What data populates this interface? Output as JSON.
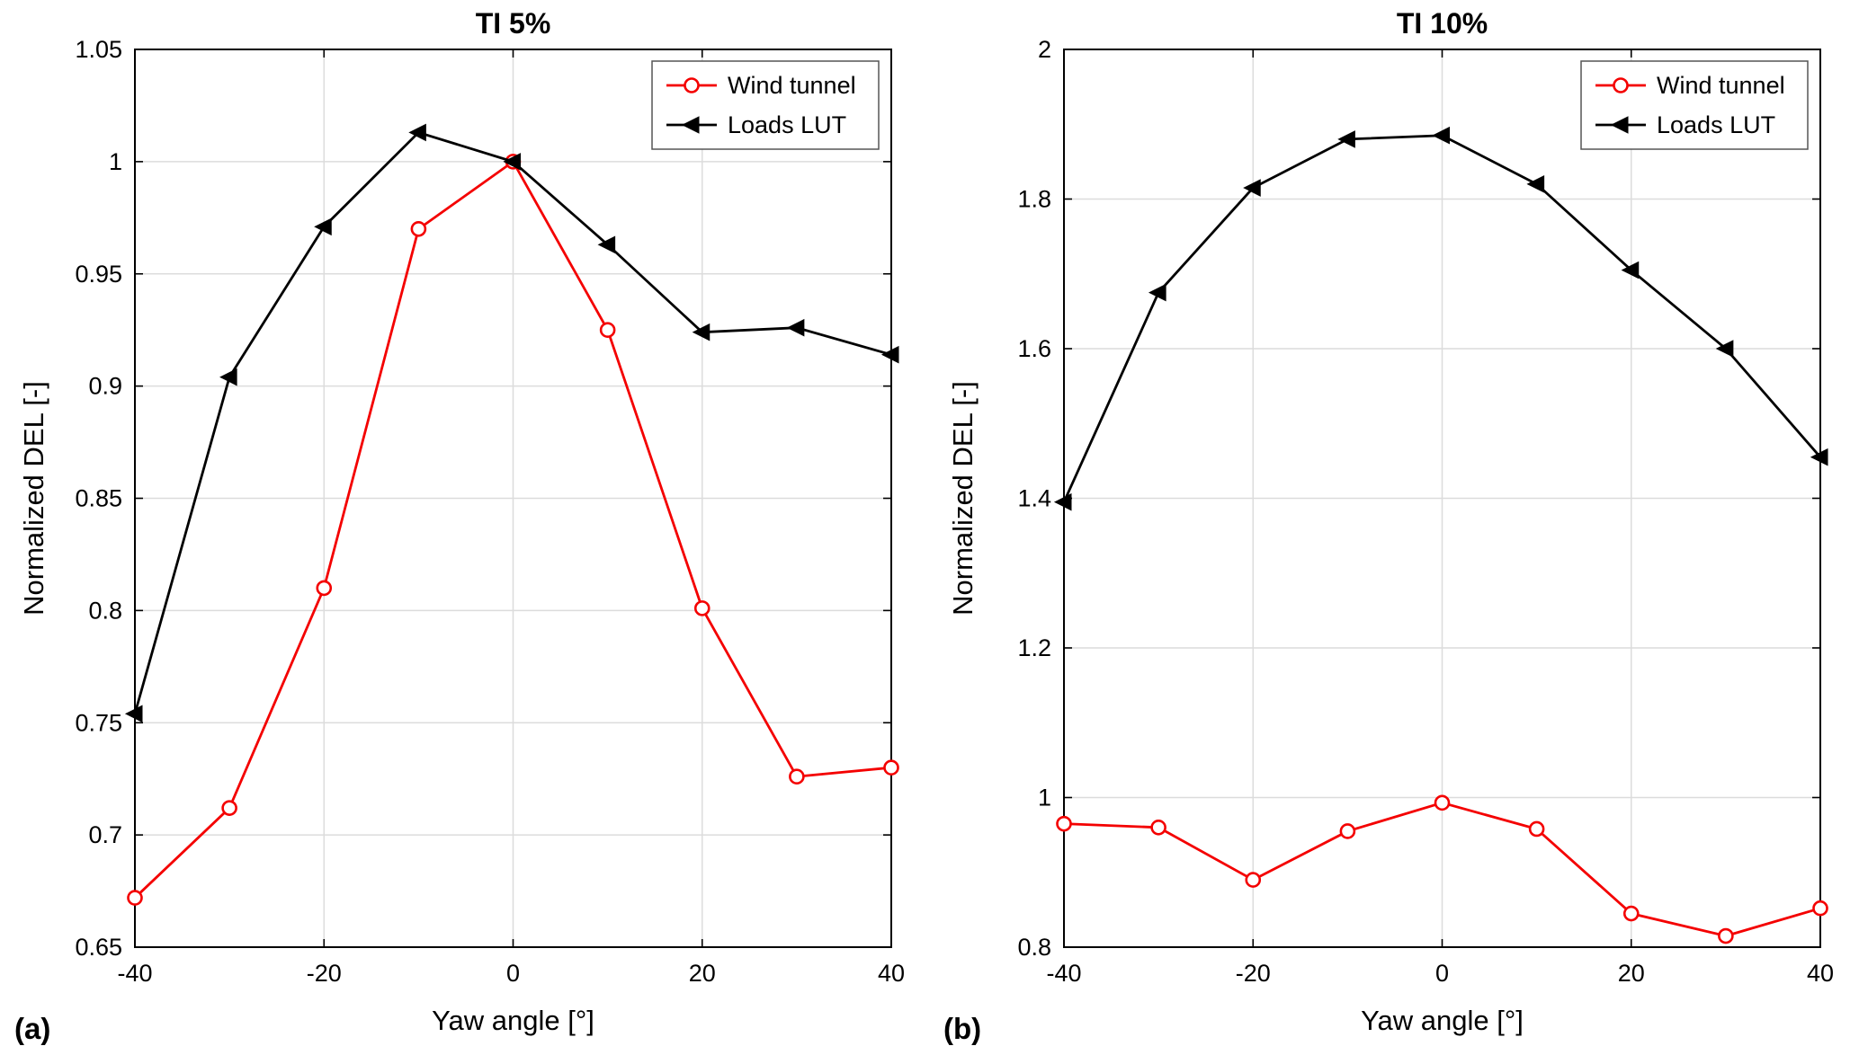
{
  "figure": {
    "panels": [
      {
        "label": "(a)"
      },
      {
        "label": "(b)"
      }
    ]
  },
  "chart_data": [
    {
      "type": "line",
      "title": "TI 5%",
      "xlabel": "Yaw angle [°]",
      "ylabel": "Normalized DEL [-]",
      "grid": true,
      "legend_position": "top-right",
      "xlim": [
        -40,
        40
      ],
      "ylim": [
        0.65,
        1.05
      ],
      "xtick_values": [
        -40,
        -20,
        0,
        20,
        40
      ],
      "xtick_labels": [
        "-40",
        "-20",
        "0",
        "20",
        "40"
      ],
      "ytick_values": [
        0.65,
        0.7,
        0.75,
        0.8,
        0.85,
        0.9,
        0.95,
        1,
        1.05
      ],
      "ytick_labels": [
        "0.65",
        "0.7",
        "0.75",
        "0.8",
        "0.85",
        "0.9",
        "0.95",
        "1",
        "1.05"
      ],
      "x": [
        -40,
        -30,
        -20,
        -10,
        0,
        10,
        20,
        30,
        40
      ],
      "series": [
        {
          "name": "Wind tunnel",
          "color": "#f40000",
          "marker": "circle",
          "values": [
            0.672,
            0.712,
            0.81,
            0.97,
            1.0,
            0.925,
            0.801,
            0.726,
            0.73
          ]
        },
        {
          "name": "Loads LUT",
          "color": "#000000",
          "marker": "triangle-left",
          "values": [
            0.754,
            0.904,
            0.971,
            1.013,
            1.0,
            0.963,
            0.924,
            0.926,
            0.914
          ]
        }
      ]
    },
    {
      "type": "line",
      "title": "TI 10%",
      "xlabel": "Yaw angle [°]",
      "ylabel": "Normalized DEL [-]",
      "grid": true,
      "legend_position": "top-right",
      "xlim": [
        -40,
        40
      ],
      "ylim": [
        0.8,
        2
      ],
      "xtick_values": [
        -40,
        -20,
        0,
        20,
        40
      ],
      "xtick_labels": [
        "-40",
        "-20",
        "0",
        "20",
        "40"
      ],
      "ytick_values": [
        0.8,
        1,
        1.2,
        1.4,
        1.6,
        1.8,
        2
      ],
      "ytick_labels": [
        "0.8",
        "1",
        "1.2",
        "1.4",
        "1.6",
        "1.8",
        "2"
      ],
      "x": [
        -40,
        -30,
        -20,
        -10,
        0,
        10,
        20,
        30,
        40
      ],
      "series": [
        {
          "name": "Wind tunnel",
          "color": "#f40000",
          "marker": "circle",
          "values": [
            0.965,
            0.96,
            0.89,
            0.955,
            0.993,
            0.958,
            0.845,
            0.815,
            0.852
          ]
        },
        {
          "name": "Loads LUT",
          "color": "#000000",
          "marker": "triangle-left",
          "values": [
            1.395,
            1.675,
            1.815,
            1.88,
            1.885,
            1.82,
            1.705,
            1.6,
            1.455
          ]
        }
      ]
    }
  ],
  "style": {
    "grid_color": "#dcdcdc",
    "axis_color": "#000000",
    "legend_border_color": "#555555",
    "background": "#ffffff"
  }
}
